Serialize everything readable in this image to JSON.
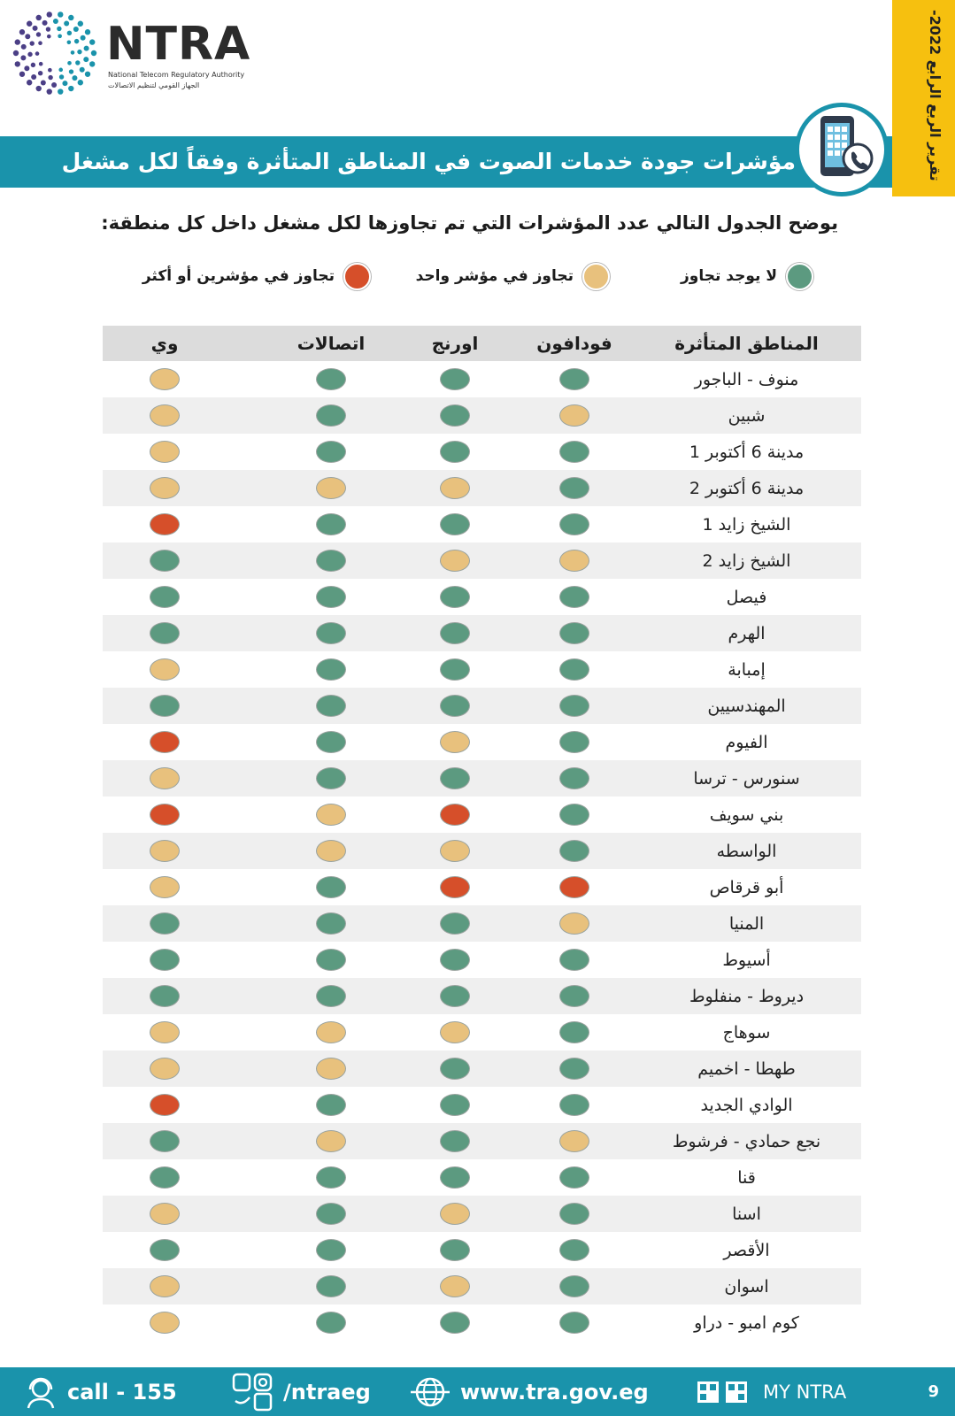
{
  "colors": {
    "none": "#5c9a80",
    "one": "#e8c17d",
    "two_plus": "#d64f2a",
    "banner": "#1a93ab",
    "tab": "#f6c00f"
  },
  "logo": {
    "name": "NTRA",
    "subtitle_en": "National Telecom Regulatory Authority",
    "subtitle_ar": "الجهاز القومي لتنظيم الاتصالات"
  },
  "side_tab": "تقرير الربع الرابع 2022-",
  "banner_title": "مؤشرات جودة خدمات الصوت في المناطق المتأثرة وفقاً لكل مشغل",
  "intro": "يوضح الجدول التالي عدد المؤشرات التي تم تجاوزها لكل مشغل داخل كل منطقة:",
  "legend": {
    "none": "لا يوجد تجاوز",
    "one": "تجاوز في مؤشر واحد",
    "two_plus": "تجاوز في مؤشرين أو أكثر"
  },
  "table": {
    "headers": {
      "area": "المناطق المتأثرة",
      "vodafone": "فودافون",
      "orange": "اورنج",
      "etisalat": "اتصالات",
      "we": "وي"
    },
    "rows": [
      {
        "area": "منوف - الباجور",
        "vodafone": "none",
        "orange": "none",
        "etisalat": "none",
        "we": "one"
      },
      {
        "area": "شبين",
        "vodafone": "one",
        "orange": "none",
        "etisalat": "none",
        "we": "one"
      },
      {
        "area": "مدينة 6 أكتوبر 1",
        "vodafone": "none",
        "orange": "none",
        "etisalat": "none",
        "we": "one"
      },
      {
        "area": "مدينة 6 أكتوبر 2",
        "vodafone": "none",
        "orange": "one",
        "etisalat": "one",
        "we": "one"
      },
      {
        "area": "الشيخ زايد 1",
        "vodafone": "none",
        "orange": "none",
        "etisalat": "none",
        "we": "two_plus"
      },
      {
        "area": "الشيخ زايد 2",
        "vodafone": "one",
        "orange": "one",
        "etisalat": "none",
        "we": "none"
      },
      {
        "area": "فيصل",
        "vodafone": "none",
        "orange": "none",
        "etisalat": "none",
        "we": "none"
      },
      {
        "area": "الهرم",
        "vodafone": "none",
        "orange": "none",
        "etisalat": "none",
        "we": "none"
      },
      {
        "area": "إمبابة",
        "vodafone": "none",
        "orange": "none",
        "etisalat": "none",
        "we": "one"
      },
      {
        "area": "المهندسيين",
        "vodafone": "none",
        "orange": "none",
        "etisalat": "none",
        "we": "none"
      },
      {
        "area": "الفيوم",
        "vodafone": "none",
        "orange": "one",
        "etisalat": "none",
        "we": "two_plus"
      },
      {
        "area": "سنورس - ترسا",
        "vodafone": "none",
        "orange": "none",
        "etisalat": "none",
        "we": "one"
      },
      {
        "area": "بني سويف",
        "vodafone": "none",
        "orange": "two_plus",
        "etisalat": "one",
        "we": "two_plus"
      },
      {
        "area": "الواسطه",
        "vodafone": "none",
        "orange": "one",
        "etisalat": "one",
        "we": "one"
      },
      {
        "area": "أبو قرقاص",
        "vodafone": "two_plus",
        "orange": "two_plus",
        "etisalat": "none",
        "we": "one"
      },
      {
        "area": "المنيا",
        "vodafone": "one",
        "orange": "none",
        "etisalat": "none",
        "we": "none"
      },
      {
        "area": "أسيوط",
        "vodafone": "none",
        "orange": "none",
        "etisalat": "none",
        "we": "none"
      },
      {
        "area": "ديروط - منفلوط",
        "vodafone": "none",
        "orange": "none",
        "etisalat": "none",
        "we": "none"
      },
      {
        "area": "سوهاج",
        "vodafone": "none",
        "orange": "one",
        "etisalat": "one",
        "we": "one"
      },
      {
        "area": "طهطا - اخميم",
        "vodafone": "none",
        "orange": "none",
        "etisalat": "one",
        "we": "one"
      },
      {
        "area": "الوادي الجديد",
        "vodafone": "none",
        "orange": "none",
        "etisalat": "none",
        "we": "two_plus"
      },
      {
        "area": "نجع حمادي - فرشوط",
        "vodafone": "one",
        "orange": "none",
        "etisalat": "one",
        "we": "none"
      },
      {
        "area": "قنا",
        "vodafone": "none",
        "orange": "none",
        "etisalat": "none",
        "we": "none"
      },
      {
        "area": "اسنا",
        "vodafone": "none",
        "orange": "one",
        "etisalat": "none",
        "we": "one"
      },
      {
        "area": "الأقصر",
        "vodafone": "none",
        "orange": "none",
        "etisalat": "none",
        "we": "none"
      },
      {
        "area": "اسوان",
        "vodafone": "none",
        "orange": "one",
        "etisalat": "none",
        "we": "one"
      },
      {
        "area": "كوم امبو - دراو",
        "vodafone": "none",
        "orange": "none",
        "etisalat": "none",
        "we": "one"
      }
    ]
  },
  "footer": {
    "call": "call - 155",
    "social": "/ntraeg",
    "website": "www.tra.gov.eg",
    "app": "MY NTRA",
    "page": "9"
  }
}
